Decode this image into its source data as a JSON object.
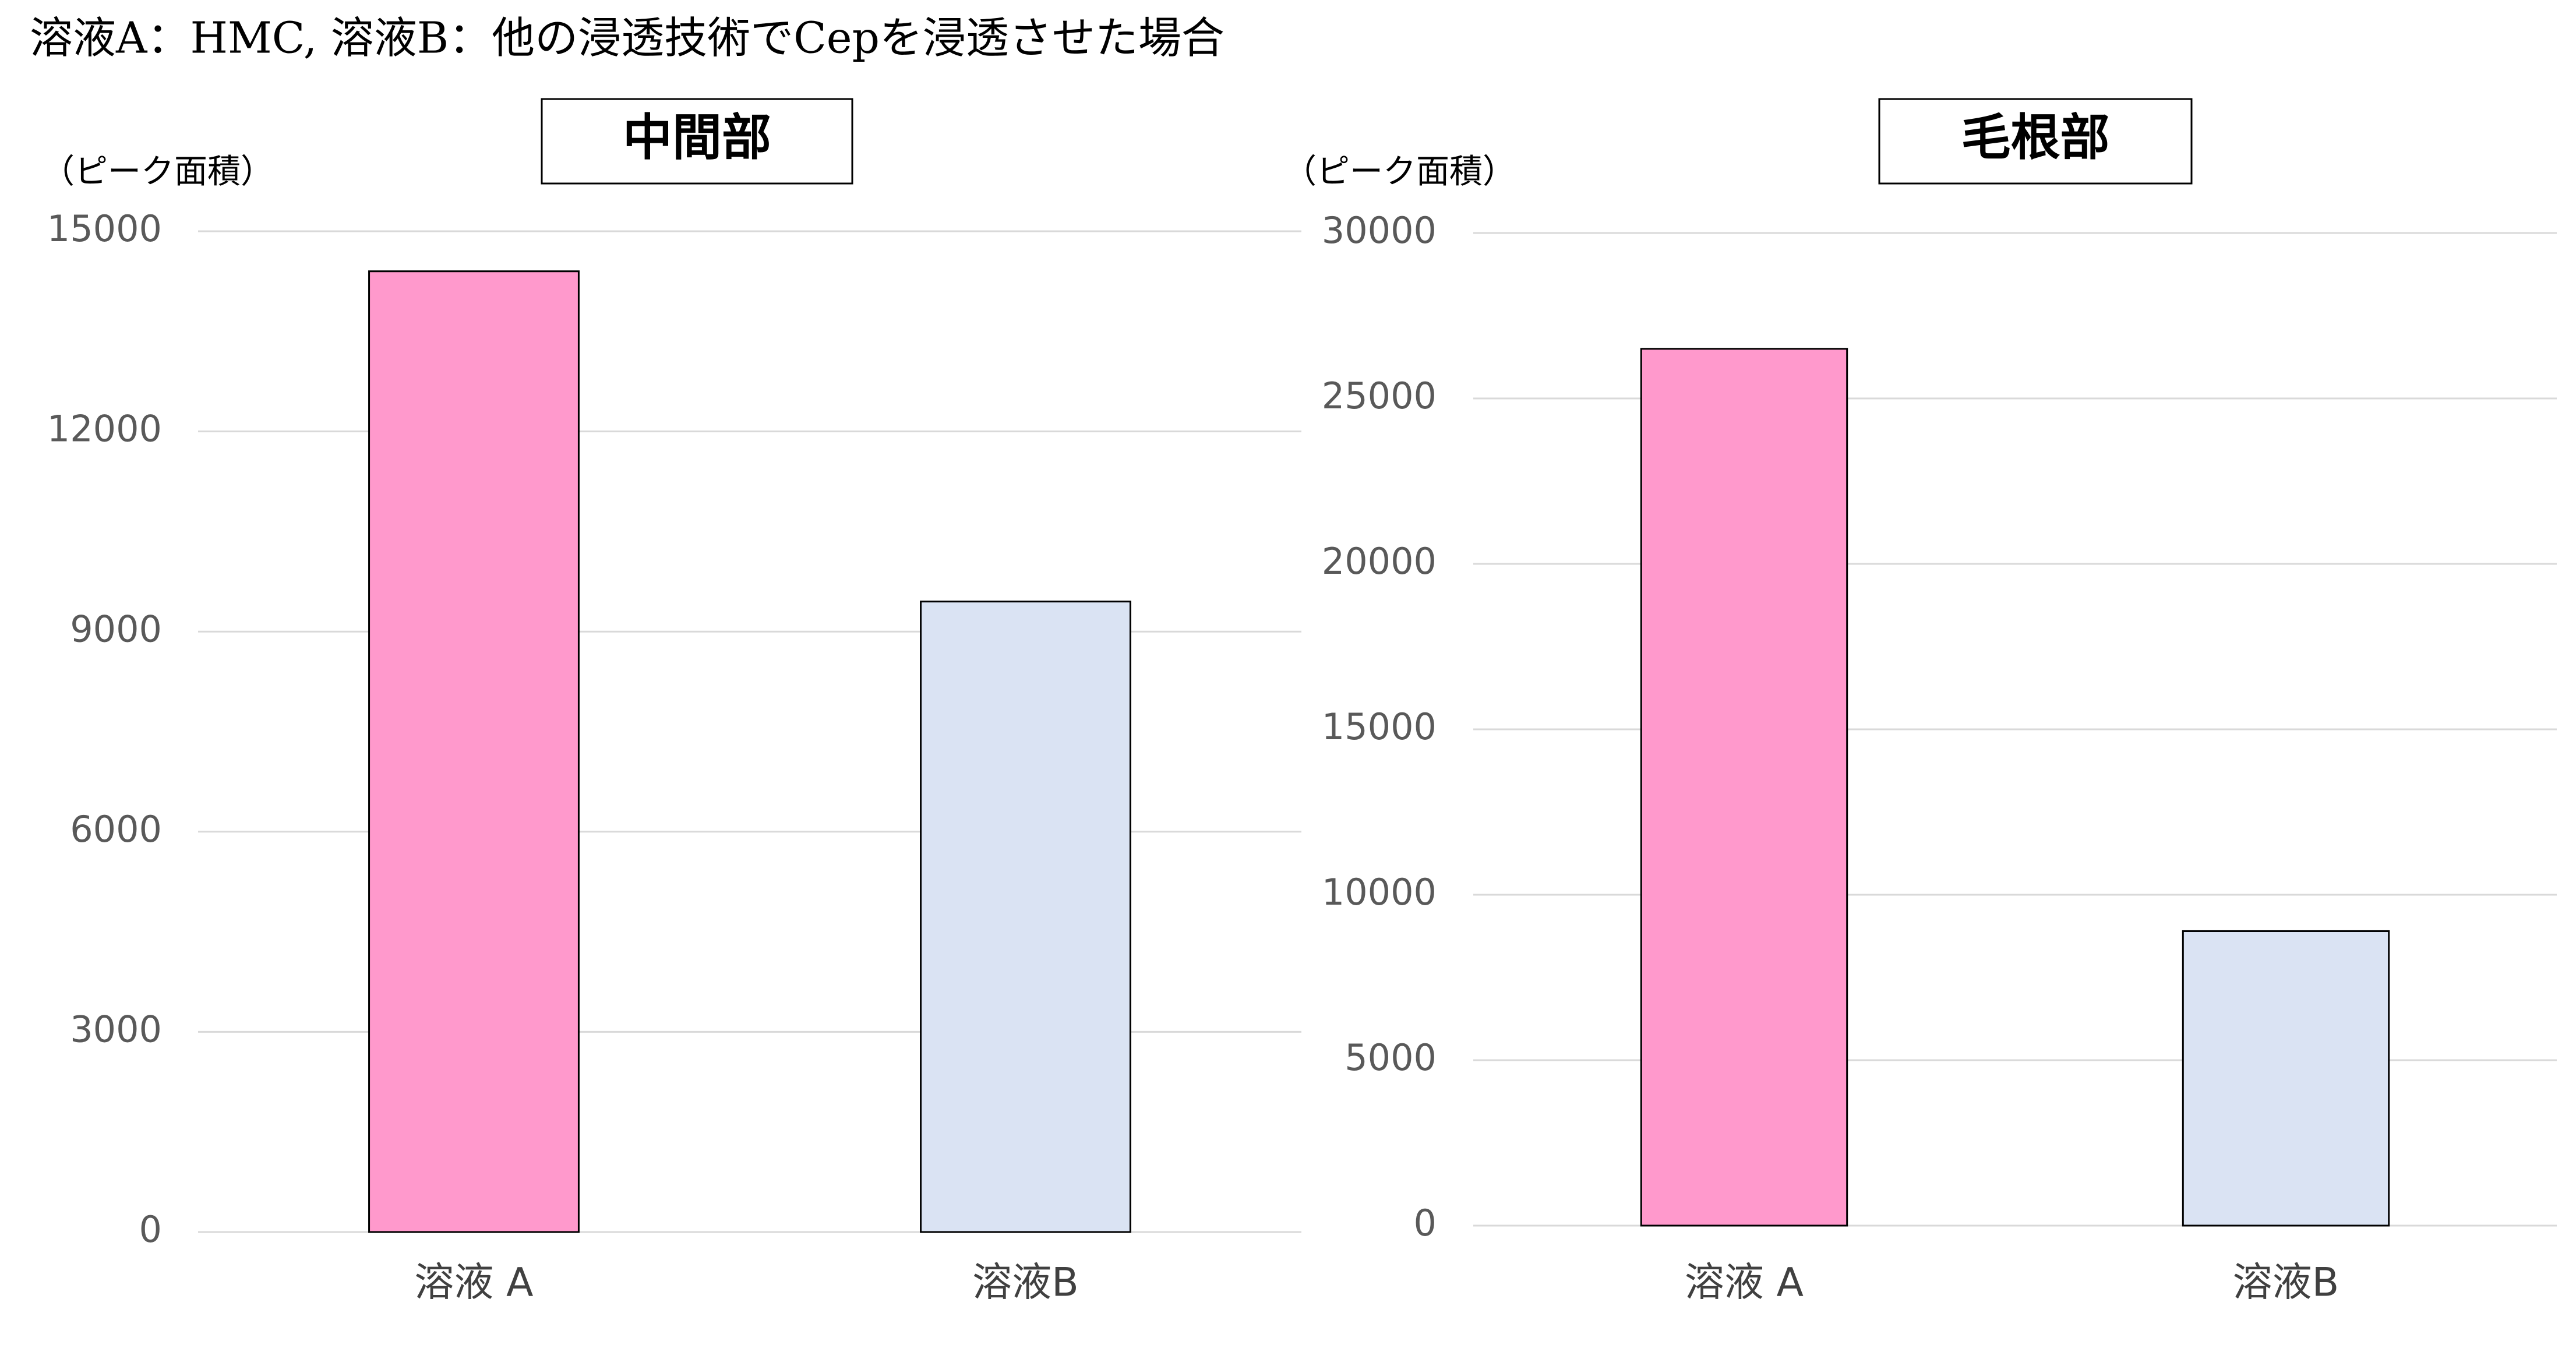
{
  "title": "溶液A：HMC, 溶液B：他の浸透技術でCepを浸透させた場合",
  "chart_data": [
    {
      "type": "bar",
      "title": "中間部",
      "y_label": "（ピーク面積）",
      "categories": [
        "溶液 A",
        "溶液B"
      ],
      "values": [
        14400,
        9450
      ],
      "colors": [
        "#ff99cc",
        "#dae3f3"
      ],
      "ylim": [
        0,
        15000
      ],
      "yticks": [
        0,
        3000,
        6000,
        9000,
        12000,
        15000
      ],
      "grid": true
    },
    {
      "type": "bar",
      "title": "毛根部",
      "y_label": "（ピーク面積）",
      "categories": [
        "溶液 A",
        "溶液B"
      ],
      "values": [
        26500,
        8900
      ],
      "colors": [
        "#ff99cc",
        "#dae3f3"
      ],
      "ylim": [
        0,
        30000
      ],
      "yticks": [
        0,
        5000,
        10000,
        15000,
        20000,
        25000,
        30000
      ],
      "grid": true
    }
  ]
}
